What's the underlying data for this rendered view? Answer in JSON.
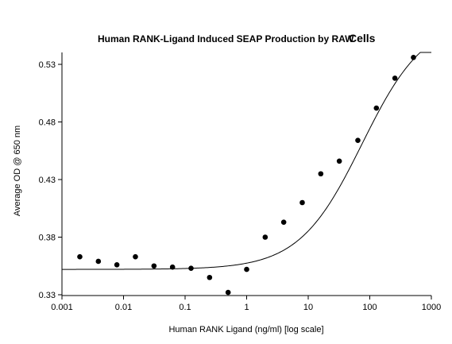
{
  "chart_data": {
    "type": "scatter",
    "title_main": "Human RANK-Ligand Induced SEAP Production by RAW",
    "title_suffix": "Cells",
    "xlabel": "Human RANK Ligand (ng/ml) [log scale]",
    "ylabel": "Average OD @ 650 nm",
    "x_scale": "log",
    "xlim": [
      0.001,
      1000
    ],
    "ylim": [
      0.33,
      0.54
    ],
    "x_ticks": [
      {
        "value": 0.001,
        "label": "0.001"
      },
      {
        "value": 0.01,
        "label": "0.01"
      },
      {
        "value": 0.1,
        "label": "0.1"
      },
      {
        "value": 1,
        "label": "1"
      },
      {
        "value": 10,
        "label": "10"
      },
      {
        "value": 100,
        "label": "100"
      },
      {
        "value": 1000,
        "label": "1000"
      }
    ],
    "y_ticks": [
      {
        "value": 0.33,
        "label": "0.33"
      },
      {
        "value": 0.38,
        "label": "0.38"
      },
      {
        "value": 0.43,
        "label": "0.43"
      },
      {
        "value": 0.48,
        "label": "0.48"
      },
      {
        "value": 0.53,
        "label": "0.53"
      }
    ],
    "grid": false,
    "series": [
      {
        "kind": "points",
        "x": [
          0.00195,
          0.0039,
          0.0078,
          0.0156,
          0.03125,
          0.0625,
          0.125,
          0.25,
          0.5,
          1,
          2,
          4,
          8,
          16,
          32,
          64,
          128,
          256,
          512
        ],
        "y": [
          0.363,
          0.359,
          0.356,
          0.363,
          0.355,
          0.354,
          0.353,
          0.345,
          0.332,
          0.352,
          0.38,
          0.393,
          0.41,
          0.435,
          0.446,
          0.464,
          0.492,
          0.518,
          0.536
        ]
      },
      {
        "kind": "fit-curve",
        "model": "4PL",
        "bottom": 0.352,
        "top": 0.57,
        "ec50": 75,
        "hill": 0.85
      }
    ]
  }
}
